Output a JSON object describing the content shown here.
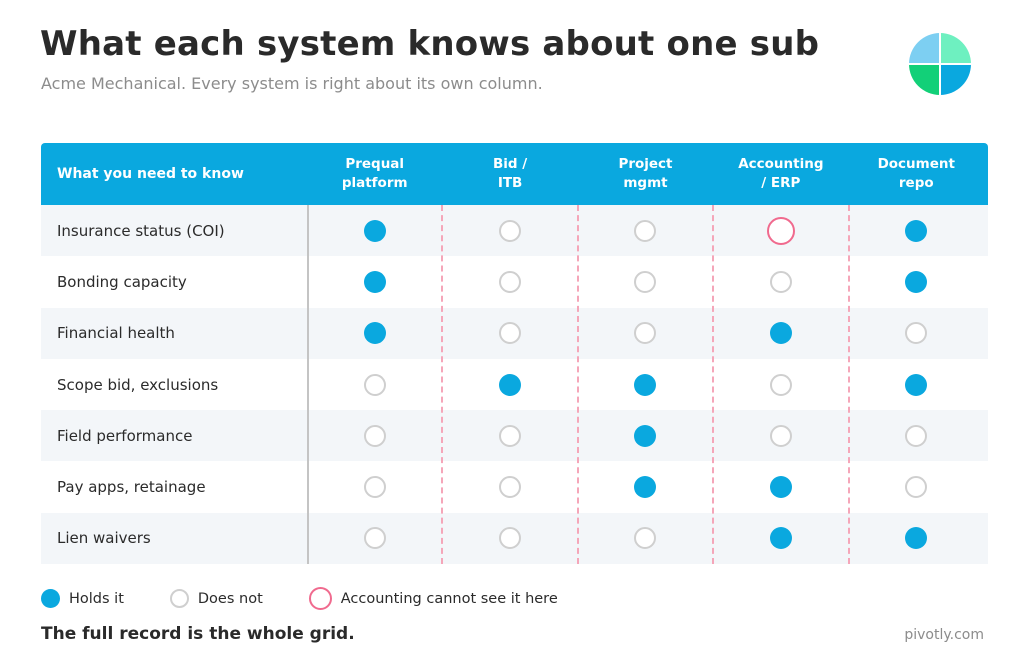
{
  "header": {
    "title": "What each system knows about one sub",
    "subtitle": "Acme Mechanical. Every system is right about its own column."
  },
  "logo": {
    "colors": [
      "#7dcff2",
      "#6ef0c0",
      "#12d078",
      "#0aa8df"
    ]
  },
  "table": {
    "first_header": "What you need to know",
    "columns": [
      {
        "line1": "Prequal",
        "line2": "platform"
      },
      {
        "line1": "Bid /",
        "line2": "ITB"
      },
      {
        "line1": "Project",
        "line2": "mgmt"
      },
      {
        "line1": "Accounting",
        "line2": "/ ERP"
      },
      {
        "line1": "Document",
        "line2": "repo"
      }
    ],
    "rows": [
      {
        "label": "Insurance status (COI)",
        "cells": [
          "holds",
          "not",
          "not",
          "blind",
          "holds"
        ]
      },
      {
        "label": "Bonding capacity",
        "cells": [
          "holds",
          "not",
          "not",
          "not",
          "holds"
        ]
      },
      {
        "label": "Financial health",
        "cells": [
          "holds",
          "not",
          "not",
          "holds",
          "not"
        ]
      },
      {
        "label": "Scope bid, exclusions",
        "cells": [
          "not",
          "holds",
          "holds",
          "not",
          "holds"
        ]
      },
      {
        "label": "Field performance",
        "cells": [
          "not",
          "not",
          "holds",
          "not",
          "not"
        ]
      },
      {
        "label": "Pay apps, retainage",
        "cells": [
          "not",
          "not",
          "holds",
          "holds",
          "not"
        ]
      },
      {
        "label": "Lien waivers",
        "cells": [
          "not",
          "not",
          "not",
          "holds",
          "holds"
        ]
      }
    ]
  },
  "legend": {
    "holds": "Holds it",
    "not": "Does not",
    "blind": "Accounting cannot see it here"
  },
  "footer": {
    "note": "The full record is the whole grid.",
    "brand": "pivotly.com"
  },
  "colors": {
    "accent": "#0aa8df",
    "empty_ring": "#cfcfcf",
    "blind_ring": "#f06a8e",
    "divider_dash": "#f5a6b9"
  }
}
